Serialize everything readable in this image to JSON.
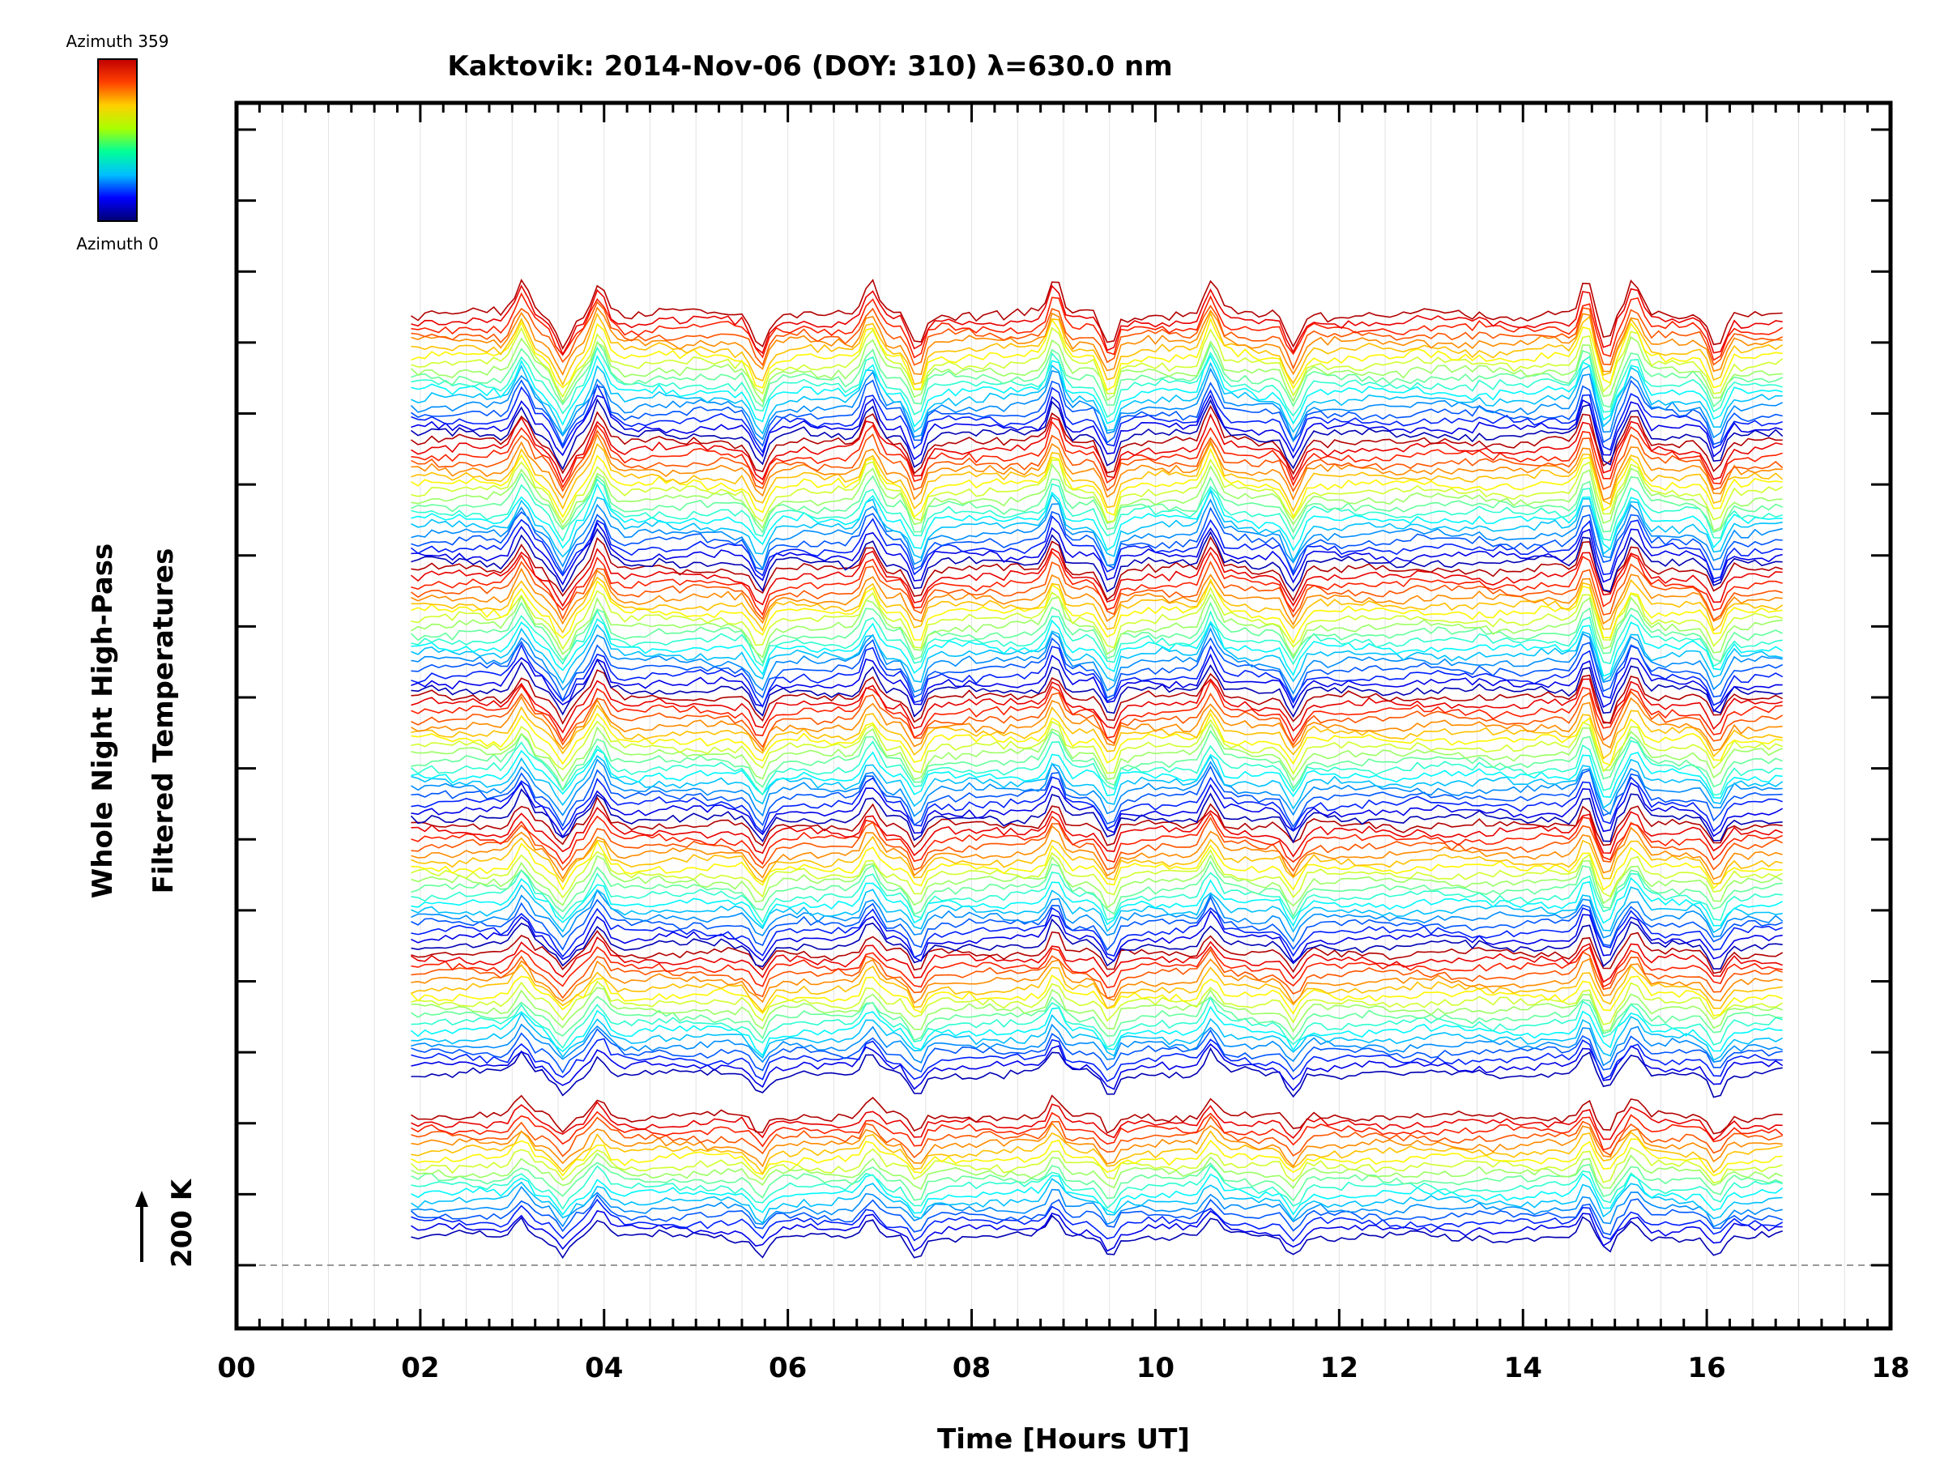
{
  "chart_data": {
    "type": "line",
    "title": "Kaktovik: 2014-Nov-06 (DOY: 310) λ=630.0 nm",
    "xlabel": "Time [Hours UT]",
    "ylabel_line1": "Whole Night High-Pass",
    "ylabel_line2": "Filtered Temperatures",
    "scale_label": "200 K",
    "xlim": [
      0,
      18
    ],
    "x_ticks": [
      "00",
      "02",
      "04",
      "06",
      "08",
      "10",
      "12",
      "14",
      "16",
      "18"
    ],
    "x_tick_values": [
      0,
      2,
      4,
      6,
      8,
      10,
      12,
      14,
      16,
      18
    ],
    "y_stack_units": [
      0,
      16
    ],
    "time_range": [
      1.9,
      16.85
    ],
    "colorbar": {
      "top_label": "Azimuth 359",
      "bottom_label": "Azimuth 0",
      "range": [
        0,
        359
      ],
      "colors": [
        "#000070",
        "#0000ff",
        "#00bfff",
        "#00ff99",
        "#a8ff00",
        "#ffd000",
        "#ff4000",
        "#c00000"
      ]
    },
    "series_layout": {
      "groups": 7,
      "lines_per_group": 18,
      "note": "traces are vertically offset, one per azimuth, colored by azimuth 0-359"
    },
    "event_times": [
      3.1,
      3.55,
      3.95,
      5.7,
      6.9,
      7.4,
      8.9,
      9.5,
      10.6,
      11.5,
      14.7,
      14.9,
      15.2,
      16.1
    ]
  }
}
